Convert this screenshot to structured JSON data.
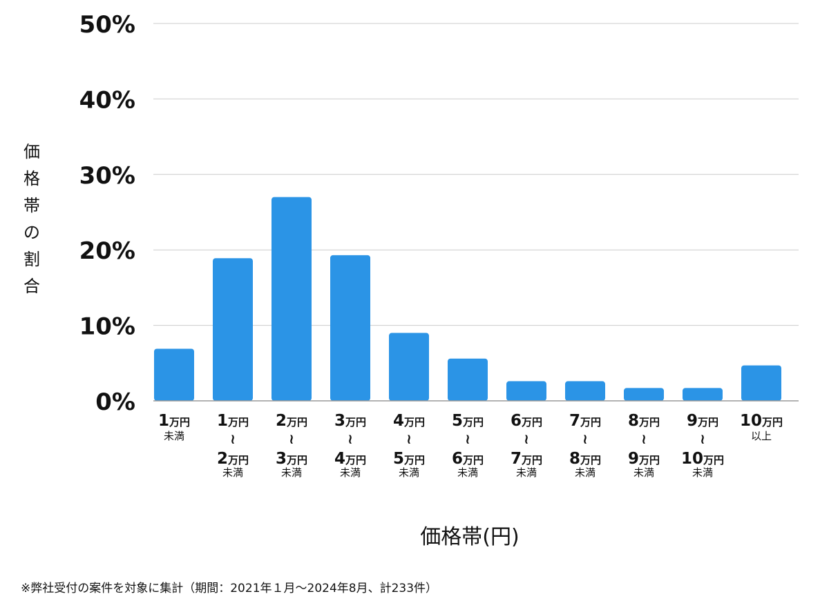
{
  "chart_data": {
    "type": "bar",
    "categories": [
      {
        "from": "1",
        "from_unit": "万円",
        "tilde": "",
        "to": "",
        "to_unit": "",
        "suffix": "未満"
      },
      {
        "from": "1",
        "from_unit": "万円",
        "tilde": "≀",
        "to": "2",
        "to_unit": "万円",
        "suffix": "未満"
      },
      {
        "from": "2",
        "from_unit": "万円",
        "tilde": "≀",
        "to": "3",
        "to_unit": "万円",
        "suffix": "未満"
      },
      {
        "from": "3",
        "from_unit": "万円",
        "tilde": "≀",
        "to": "4",
        "to_unit": "万円",
        "suffix": "未満"
      },
      {
        "from": "4",
        "from_unit": "万円",
        "tilde": "≀",
        "to": "5",
        "to_unit": "万円",
        "suffix": "未満"
      },
      {
        "from": "5",
        "from_unit": "万円",
        "tilde": "≀",
        "to": "6",
        "to_unit": "万円",
        "suffix": "未満"
      },
      {
        "from": "6",
        "from_unit": "万円",
        "tilde": "≀",
        "to": "7",
        "to_unit": "万円",
        "suffix": "未満"
      },
      {
        "from": "7",
        "from_unit": "万円",
        "tilde": "≀",
        "to": "8",
        "to_unit": "万円",
        "suffix": "未満"
      },
      {
        "from": "8",
        "from_unit": "万円",
        "tilde": "≀",
        "to": "9",
        "to_unit": "万円",
        "suffix": "未満"
      },
      {
        "from": "9",
        "from_unit": "万円",
        "tilde": "≀",
        "to": "10",
        "to_unit": "万円",
        "suffix": "未満"
      },
      {
        "from": "10",
        "from_unit": "万円",
        "tilde": "",
        "to": "",
        "to_unit": "",
        "suffix": "以上"
      }
    ],
    "values": [
      6.9,
      18.9,
      27.0,
      19.3,
      9.0,
      5.6,
      2.6,
      2.6,
      1.7,
      1.7,
      4.7
    ],
    "yticks": [
      "0%",
      "10%",
      "20%",
      "30%",
      "40%",
      "50%"
    ],
    "ylim": [
      0,
      50
    ],
    "ylabel": "価格帯の割合",
    "xlabel": "価格帯(円)",
    "bar_color": "#2b94e6",
    "grid": true,
    "gridline_color": "#cccccc",
    "axis_color": "#999999",
    "footnote": "※弊社受付の案件を対象に集計（期間：2021年１月〜2024年8月、計233件）"
  }
}
